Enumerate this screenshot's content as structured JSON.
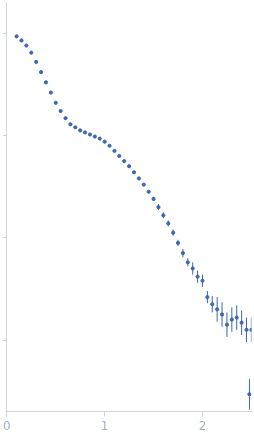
{
  "chart_data": {
    "type": "scatter",
    "x": [
      0.1,
      0.15,
      0.2,
      0.25,
      0.3,
      0.35,
      0.4,
      0.45,
      0.5,
      0.55,
      0.6,
      0.65,
      0.7,
      0.75,
      0.8,
      0.85,
      0.9,
      0.95,
      1.0,
      1.05,
      1.1,
      1.15,
      1.2,
      1.25,
      1.3,
      1.35,
      1.4,
      1.45,
      1.5,
      1.55,
      1.6,
      1.65,
      1.7,
      1.75,
      1.8,
      1.85,
      1.9,
      1.95,
      2.0,
      2.05,
      2.1,
      2.15,
      2.2,
      2.25,
      2.3,
      2.35,
      2.4,
      2.45,
      2.48,
      2.5
    ],
    "values": [
      3.97,
      3.93,
      3.88,
      3.81,
      3.72,
      3.62,
      3.52,
      3.42,
      3.32,
      3.24,
      3.17,
      3.11,
      3.08,
      3.05,
      3.03,
      3.01,
      2.99,
      2.97,
      2.94,
      2.9,
      2.85,
      2.8,
      2.75,
      2.7,
      2.64,
      2.58,
      2.52,
      2.45,
      2.38,
      2.3,
      2.22,
      2.14,
      2.05,
      1.95,
      1.85,
      1.76,
      1.7,
      1.62,
      1.58,
      1.42,
      1.35,
      1.3,
      1.25,
      1.15,
      1.2,
      1.22,
      1.17,
      1.1,
      0.47,
      1.1
    ],
    "errors": [
      0.01,
      0.01,
      0.01,
      0.01,
      0.01,
      0.01,
      0.01,
      0.01,
      0.01,
      0.01,
      0.01,
      0.01,
      0.01,
      0.01,
      0.01,
      0.01,
      0.01,
      0.01,
      0.01,
      0.01,
      0.01,
      0.01,
      0.01,
      0.01,
      0.01,
      0.01,
      0.01,
      0.01,
      0.02,
      0.03,
      0.03,
      0.03,
      0.03,
      0.03,
      0.04,
      0.04,
      0.06,
      0.06,
      0.06,
      0.06,
      0.08,
      0.12,
      0.12,
      0.12,
      0.12,
      0.12,
      0.12,
      0.12,
      0.15,
      0.12
    ],
    "color": "#3d67b1",
    "marker": "circle",
    "xlim": [
      0,
      2.5
    ],
    "xticks": [
      0,
      1,
      2
    ],
    "ylim": [
      0.3,
      4.3
    ],
    "yticks": [
      1,
      2,
      3,
      4
    ],
    "grid": false,
    "tick_labels": "x"
  }
}
